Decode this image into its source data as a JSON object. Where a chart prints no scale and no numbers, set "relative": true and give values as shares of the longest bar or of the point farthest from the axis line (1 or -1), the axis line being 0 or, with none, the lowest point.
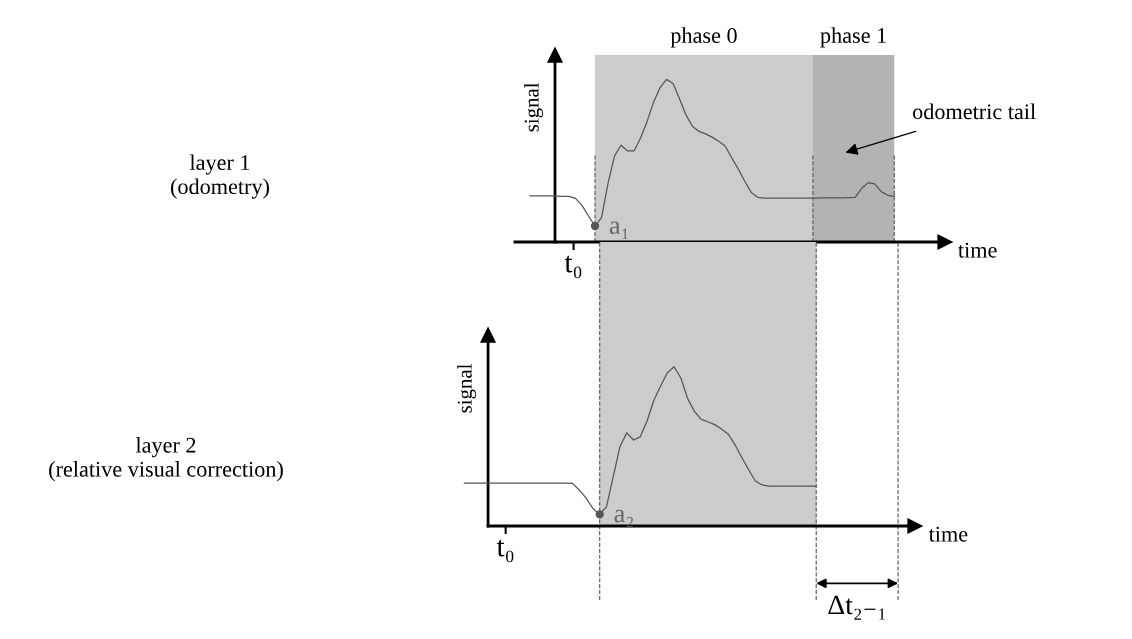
{
  "chart_data": [
    {
      "type": "line",
      "relative": true,
      "xlabel": "time",
      "ylabel": "signal",
      "categories": [
        null,
        null,
        null,
        null,
        null,
        null,
        null,
        null,
        null,
        null,
        null,
        null,
        null,
        null,
        null,
        null,
        null,
        null,
        null,
        null,
        null,
        null,
        null,
        null,
        null,
        null,
        null,
        null,
        null,
        null,
        null,
        null,
        null,
        null,
        null,
        null,
        null,
        null,
        null,
        null,
        null,
        null,
        null,
        null,
        null,
        null,
        null,
        null,
        null,
        null,
        null,
        null,
        null,
        null,
        null,
        null,
        null
      ],
      "series": [
        {
          "color": "#555555",
          "marker": "none",
          "values": [
            0.284,
            0.284,
            0.283,
            0.283,
            0.282,
            0.281,
            0.28,
            0.268,
            0.225,
            0.16,
            0.098,
            0.15,
            0.36,
            0.53,
            0.595,
            0.56,
            0.56,
            0.64,
            0.74,
            0.86,
            0.95,
            1.0,
            0.975,
            0.88,
            0.78,
            0.71,
            0.68,
            0.665,
            0.645,
            0.62,
            0.59,
            0.52,
            0.45,
            0.375,
            0.305,
            0.275,
            0.27,
            0.27,
            0.27,
            0.27,
            0.27,
            0.27,
            0.27,
            0.27,
            0.27,
            0.271,
            0.271,
            0.272,
            0.272,
            0.273,
            0.274,
            0.33,
            0.365,
            0.357,
            0.31,
            0.287,
            0.281
          ]
        }
      ],
      "annotations": [
        "layer 1\n(odometry)",
        "a₁",
        "t₀",
        "odometric tail",
        "phase 0",
        "phase 1"
      ]
    },
    {
      "type": "line",
      "relative": true,
      "xlabel": "time",
      "ylabel": "signal",
      "categories": [
        null,
        null,
        null,
        null,
        null,
        null,
        null,
        null,
        null,
        null,
        null,
        null,
        null,
        null,
        null,
        null,
        null,
        null,
        null,
        null,
        null,
        null,
        null,
        null,
        null,
        null,
        null,
        null,
        null,
        null,
        null,
        null,
        null,
        null,
        null,
        null,
        null,
        null,
        null,
        null,
        null,
        null,
        null,
        null,
        null,
        null,
        null,
        null,
        null,
        null,
        null,
        null,
        null
      ],
      "series": [
        {
          "color": "#555555",
          "marker": "none",
          "values": [
            0.269,
            0.269,
            0.269,
            0.269,
            0.269,
            0.269,
            0.269,
            0.269,
            0.269,
            0.269,
            0.269,
            0.269,
            0.269,
            0.269,
            0.269,
            0.269,
            0.268,
            0.225,
            0.175,
            0.11,
            0.073,
            0.12,
            0.31,
            0.5,
            0.585,
            0.54,
            0.56,
            0.66,
            0.79,
            0.88,
            0.963,
            1.0,
            0.93,
            0.8,
            0.72,
            0.67,
            0.655,
            0.637,
            0.61,
            0.577,
            0.51,
            0.43,
            0.355,
            0.283,
            0.258,
            0.25,
            0.25,
            0.25,
            0.25,
            0.25,
            0.25,
            0.25,
            0.25
          ]
        }
      ],
      "annotations": [
        "layer 2\n(relative visual correction)",
        "a₂",
        "t₀",
        "Δt₂₋₁"
      ]
    }
  ]
}
